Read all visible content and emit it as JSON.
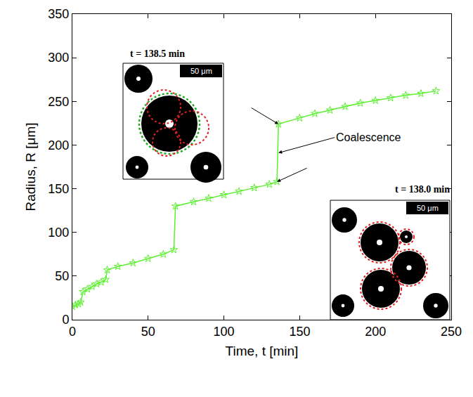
{
  "chart_data": {
    "type": "line",
    "x_label": "Time, t [min]",
    "y_label": "Radius, R [μm]",
    "x": [
      0,
      2,
      4,
      5.5,
      7,
      10,
      13,
      16,
      19,
      22,
      23,
      30,
      40,
      50,
      60,
      67,
      68,
      80,
      90,
      100,
      110,
      120,
      130,
      135,
      136,
      150,
      160,
      170,
      180,
      190,
      200,
      210,
      220,
      230,
      240
    ],
    "values": [
      15,
      17,
      18,
      20,
      32,
      35,
      38,
      41,
      43,
      46,
      57,
      61,
      65,
      70,
      75,
      80,
      130,
      135,
      139,
      143,
      147,
      151,
      155,
      158,
      224,
      231,
      236,
      240,
      244,
      248,
      251,
      254,
      257,
      259,
      262
    ],
    "color": "#5cf030",
    "marker": "star-open",
    "line_style": "solid",
    "xlim": [
      0,
      250
    ],
    "xticks": [
      0,
      50,
      100,
      150,
      200,
      250
    ],
    "ylim": [
      0,
      350
    ],
    "yticks": [
      0,
      50,
      100,
      150,
      200,
      250,
      300,
      350
    ],
    "grid": false,
    "annotations": [
      "Coalescence"
    ],
    "insets": [
      {
        "label": "t = 138.5 min",
        "scale_bar": "50 μm"
      },
      {
        "label": "t = 138.0 min",
        "scale_bar": "50 μm"
      }
    ]
  }
}
